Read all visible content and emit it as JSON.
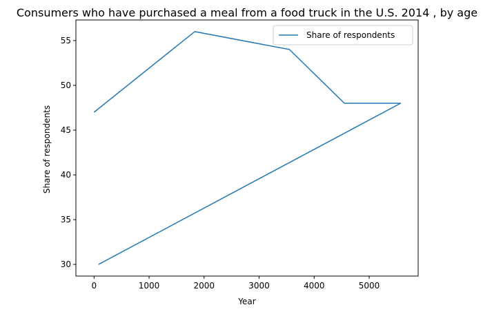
{
  "chart_data": {
    "type": "line",
    "title": "Consumers who have purchased a meal from a food truck in the U.S. 2014 , by age",
    "xlabel": "Year",
    "ylabel": "Share of respondents",
    "xlim": [
      -330,
      5890
    ],
    "ylim": [
      28.7,
      57.3
    ],
    "xticks": [
      0,
      1000,
      2000,
      3000,
      4000,
      5000
    ],
    "yticks": [
      30,
      35,
      40,
      45,
      50,
      55
    ],
    "grid": false,
    "legend_position": "top-right",
    "series": [
      {
        "name": "Share of respondents",
        "color": "#1f77b4",
        "x": [
          0,
          1830,
          3550,
          4550,
          5570,
          80
        ],
        "y": [
          47,
          56,
          54,
          48,
          48,
          30
        ]
      }
    ]
  }
}
